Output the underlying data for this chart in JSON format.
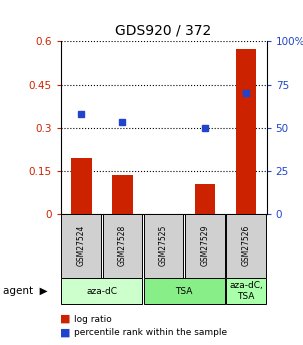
{
  "title": "GDS920 / 372",
  "samples": [
    "GSM27524",
    "GSM27528",
    "GSM27525",
    "GSM27529",
    "GSM27526"
  ],
  "log_ratio": [
    0.195,
    0.135,
    0.0,
    0.105,
    0.575
  ],
  "percentile_rank_pct": [
    58,
    53,
    0,
    50,
    70
  ],
  "bar_color": "#cc2200",
  "point_color": "#2244cc",
  "ylim_left": [
    0,
    0.6
  ],
  "ylim_right": [
    0,
    100
  ],
  "yticks_left": [
    0,
    0.15,
    0.3,
    0.45,
    0.6
  ],
  "ytick_labels_left": [
    "0",
    "0.15",
    "0.3",
    "0.45",
    "0.6"
  ],
  "yticks_right": [
    0,
    25,
    50,
    75,
    100
  ],
  "ytick_labels_right": [
    "0",
    "25",
    "50",
    "75",
    "100%"
  ],
  "agent_groups": [
    {
      "label": "aza-dC",
      "samples": [
        0,
        1
      ],
      "color": "#ccffcc"
    },
    {
      "label": "TSA",
      "samples": [
        2,
        3
      ],
      "color": "#88ee88"
    },
    {
      "label": "aza-dC,\nTSA",
      "samples": [
        4
      ],
      "color": "#aaffaa"
    }
  ],
  "legend_items": [
    {
      "color": "#cc2200",
      "label": "log ratio"
    },
    {
      "color": "#2244cc",
      "label": "percentile rank within the sample"
    }
  ],
  "bar_width": 0.5
}
